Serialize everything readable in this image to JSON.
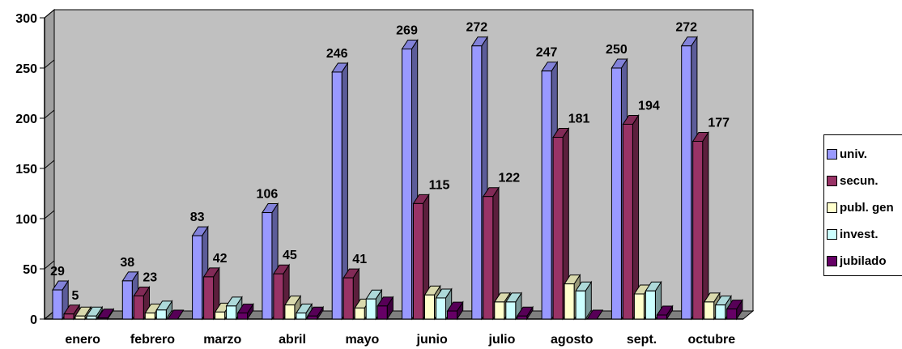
{
  "chart_data": {
    "type": "bar",
    "title": "",
    "xlabel": "",
    "ylabel": "",
    "ylim": [
      0,
      300
    ],
    "yticks": [
      0,
      50,
      100,
      150,
      200,
      250,
      300
    ],
    "grid": false,
    "legend_position": "right",
    "categories": [
      "enero",
      "febrero",
      "marzo",
      "abril",
      "mayo",
      "junio",
      "julio",
      "agosto",
      "sept.",
      "octubre"
    ],
    "series": [
      {
        "name": "univ.",
        "color": "#9999ff",
        "values": [
          29,
          38,
          83,
          106,
          246,
          269,
          272,
          247,
          250,
          272
        ]
      },
      {
        "name": "secun.",
        "color": "#993366",
        "values": [
          5,
          23,
          42,
          45,
          41,
          115,
          122,
          181,
          194,
          177
        ]
      },
      {
        "name": "publ. gen",
        "color": "#ffffcc",
        "values": [
          3,
          6,
          7,
          14,
          11,
          24,
          17,
          35,
          25,
          17
        ]
      },
      {
        "name": "invest.",
        "color": "#ccffff",
        "values": [
          3,
          9,
          13,
          6,
          20,
          21,
          17,
          28,
          28,
          14
        ]
      },
      {
        "name": "jubilado",
        "color": "#660066",
        "values": [
          1,
          0,
          6,
          3,
          13,
          8,
          3,
          0,
          4,
          10
        ]
      }
    ],
    "data_labels": {
      "univ.": [
        29,
        38,
        83,
        106,
        246,
        269,
        272,
        247,
        250,
        272
      ],
      "secun.": [
        5,
        23,
        42,
        45,
        41,
        115,
        122,
        181,
        194,
        177
      ]
    }
  }
}
